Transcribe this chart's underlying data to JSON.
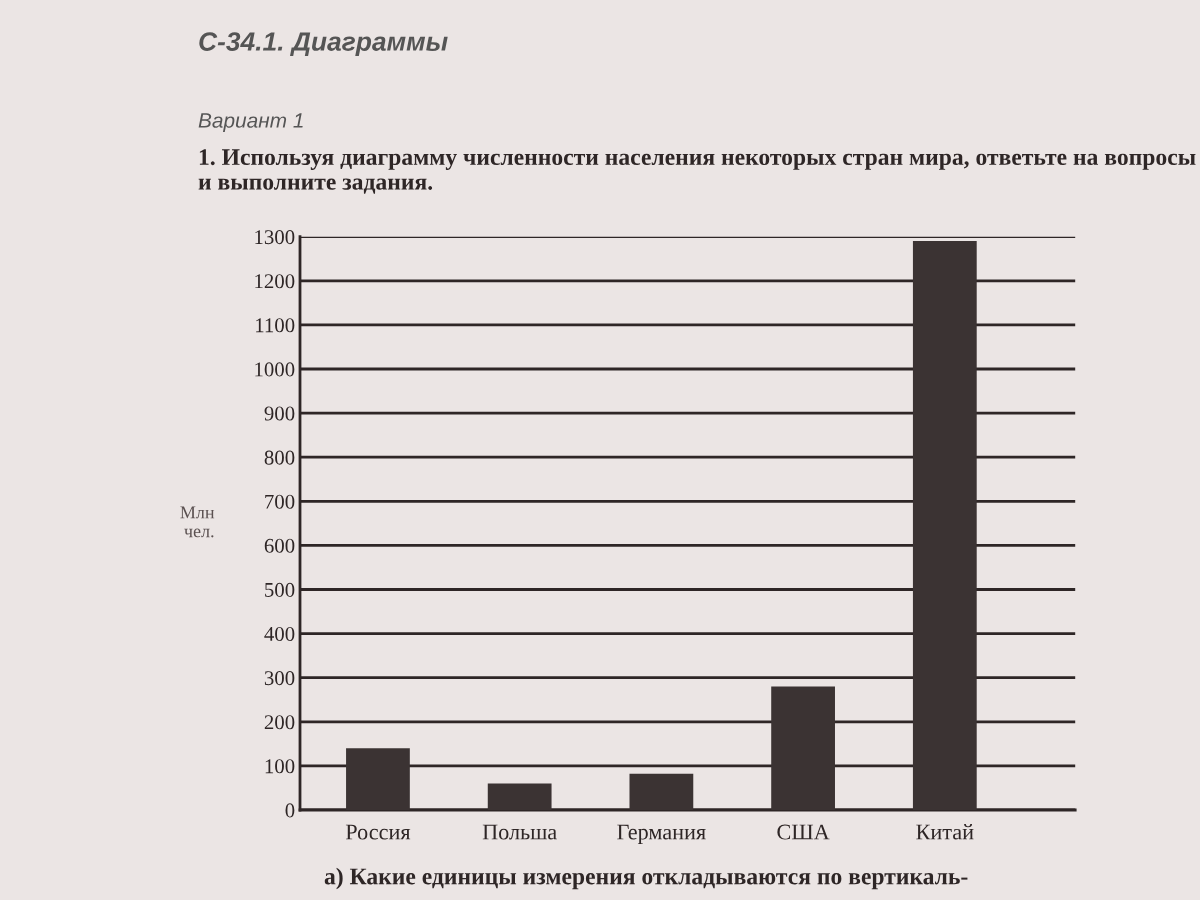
{
  "chart_data": {
    "type": "bar",
    "title": "С-34.1. Диаграммы",
    "subtitle": "Вариант 1",
    "annotations": [
      "1. Используя диаграмму численности населения некоторых стран мира, ответьте на вопросы и выполните задания.",
      "а) Какие единицы измерения откладываются по вертикаль-"
    ],
    "ylabel": "Млн\nчел.",
    "categories": [
      "Россия",
      "Польша",
      "Германия",
      "США",
      "Китай"
    ],
    "values": [
      140,
      60,
      82,
      280,
      1290
    ],
    "color": "#3b3333",
    "ylim": [
      0,
      1300
    ],
    "yticks": [
      0,
      100,
      200,
      300,
      400,
      500,
      600,
      700,
      800,
      900,
      1000,
      1100,
      1200,
      1300
    ],
    "grid": "y"
  }
}
